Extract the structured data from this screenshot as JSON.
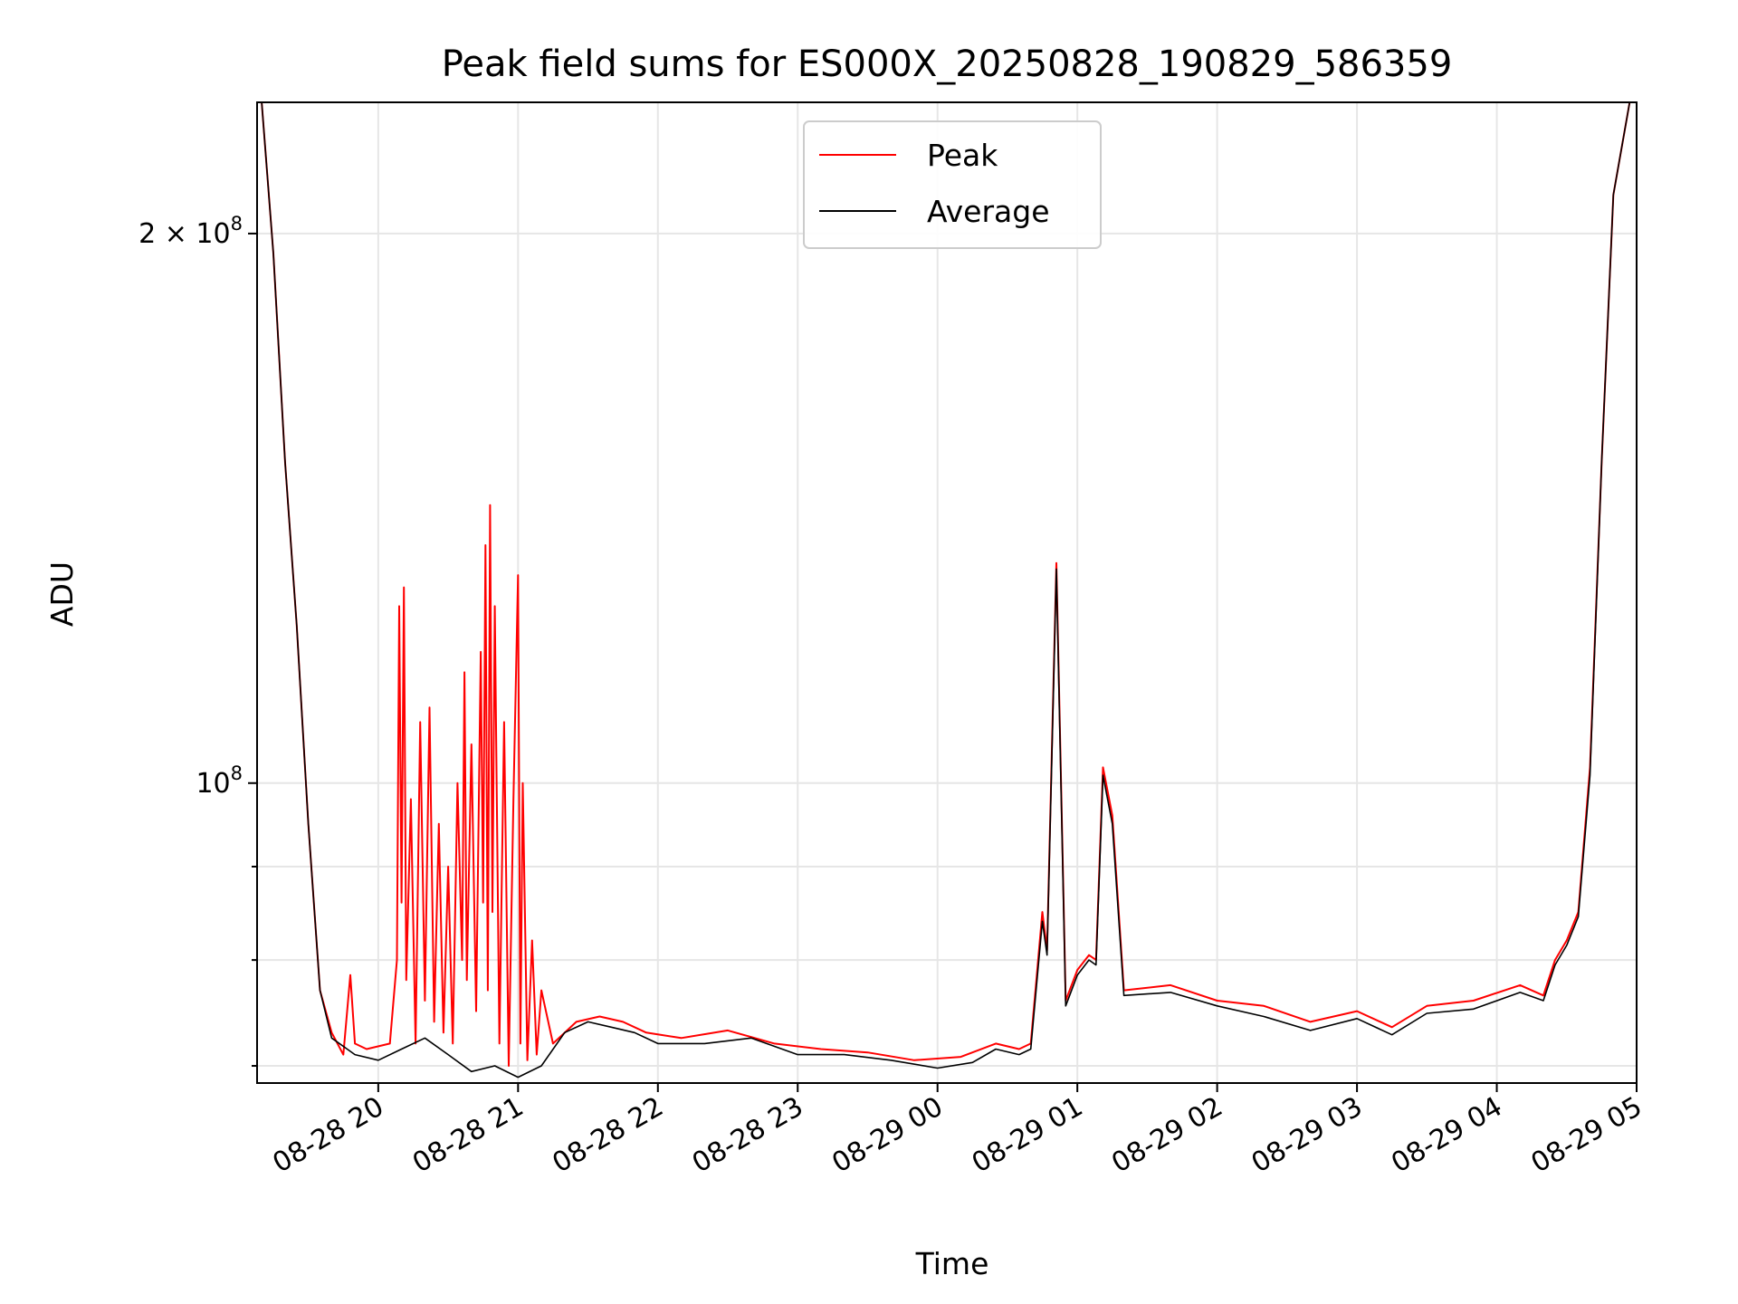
{
  "chart_data": {
    "type": "line",
    "title": "Peak field sums for ES000X_20250828_190829_586359",
    "xlabel": "Time",
    "ylabel": "ADU",
    "y_scale": "log",
    "grid": true,
    "legend_position": "upper-center",
    "xlim": [
      "2025-08-28T19:08",
      "2025-08-29T05:00"
    ],
    "ylim": [
      68500000,
      236000000
    ],
    "x_ticks": [
      {
        "value": "2025-08-28T20:00",
        "label": "08-28 20"
      },
      {
        "value": "2025-08-28T21:00",
        "label": "08-28 21"
      },
      {
        "value": "2025-08-28T22:00",
        "label": "08-28 22"
      },
      {
        "value": "2025-08-28T23:00",
        "label": "08-28 23"
      },
      {
        "value": "2025-08-29T00:00",
        "label": "08-29 00"
      },
      {
        "value": "2025-08-29T01:00",
        "label": "08-29 01"
      },
      {
        "value": "2025-08-29T02:00",
        "label": "08-29 02"
      },
      {
        "value": "2025-08-29T03:00",
        "label": "08-29 03"
      },
      {
        "value": "2025-08-29T04:00",
        "label": "08-29 04"
      },
      {
        "value": "2025-08-29T05:00",
        "label": "08-29 05"
      }
    ],
    "y_ticks": [
      {
        "value": 200000000,
        "base": "2 × 10",
        "exp": "8"
      },
      {
        "value": 100000000,
        "base": "10",
        "exp": "8"
      }
    ],
    "y_minor_ticks": [
      70000000,
      80000000,
      90000000
    ],
    "series": [
      {
        "name": "Peak",
        "color": "#ff0000",
        "points": [
          [
            "2025-08-28T19:10",
            236000000
          ],
          [
            "2025-08-28T19:15",
            195000000
          ],
          [
            "2025-08-28T19:20",
            150000000
          ],
          [
            "2025-08-28T19:25",
            122000000
          ],
          [
            "2025-08-28T19:30",
            95000000
          ],
          [
            "2025-08-28T19:35",
            77000000
          ],
          [
            "2025-08-28T19:40",
            73000000
          ],
          [
            "2025-08-28T19:45",
            71000000
          ],
          [
            "2025-08-28T19:48",
            78500000
          ],
          [
            "2025-08-28T19:50",
            72000000
          ],
          [
            "2025-08-28T19:55",
            71500000
          ],
          [
            "2025-08-28T20:05",
            72000000
          ],
          [
            "2025-08-28T20:08",
            80000000
          ],
          [
            "2025-08-28T20:09",
            125000000
          ],
          [
            "2025-08-28T20:10",
            86000000
          ],
          [
            "2025-08-28T20:11",
            128000000
          ],
          [
            "2025-08-28T20:12",
            78000000
          ],
          [
            "2025-08-28T20:14",
            98000000
          ],
          [
            "2025-08-28T20:16",
            72000000
          ],
          [
            "2025-08-28T20:18",
            108000000
          ],
          [
            "2025-08-28T20:20",
            76000000
          ],
          [
            "2025-08-28T20:22",
            110000000
          ],
          [
            "2025-08-28T20:24",
            74000000
          ],
          [
            "2025-08-28T20:26",
            95000000
          ],
          [
            "2025-08-28T20:28",
            73000000
          ],
          [
            "2025-08-28T20:30",
            90000000
          ],
          [
            "2025-08-28T20:32",
            72000000
          ],
          [
            "2025-08-28T20:34",
            100000000
          ],
          [
            "2025-08-28T20:36",
            80000000
          ],
          [
            "2025-08-28T20:37",
            115000000
          ],
          [
            "2025-08-28T20:38",
            78000000
          ],
          [
            "2025-08-28T20:40",
            105000000
          ],
          [
            "2025-08-28T20:42",
            75000000
          ],
          [
            "2025-08-28T20:44",
            118000000
          ],
          [
            "2025-08-28T20:45",
            86000000
          ],
          [
            "2025-08-28T20:46",
            135000000
          ],
          [
            "2025-08-28T20:47",
            77000000
          ],
          [
            "2025-08-28T20:48",
            142000000
          ],
          [
            "2025-08-28T20:49",
            85000000
          ],
          [
            "2025-08-28T20:50",
            125000000
          ],
          [
            "2025-08-28T20:52",
            72000000
          ],
          [
            "2025-08-28T20:54",
            108000000
          ],
          [
            "2025-08-28T20:56",
            70000000
          ],
          [
            "2025-08-28T20:58",
            98000000
          ],
          [
            "2025-08-28T21:00",
            130000000
          ],
          [
            "2025-08-28T21:01",
            72000000
          ],
          [
            "2025-08-28T21:02",
            100000000
          ],
          [
            "2025-08-28T21:04",
            70500000
          ],
          [
            "2025-08-28T21:06",
            82000000
          ],
          [
            "2025-08-28T21:08",
            71000000
          ],
          [
            "2025-08-28T21:10",
            77000000
          ],
          [
            "2025-08-28T21:15",
            72000000
          ],
          [
            "2025-08-28T21:25",
            74000000
          ],
          [
            "2025-08-28T21:35",
            74500000
          ],
          [
            "2025-08-28T21:45",
            74000000
          ],
          [
            "2025-08-28T21:55",
            73000000
          ],
          [
            "2025-08-28T22:10",
            72500000
          ],
          [
            "2025-08-28T22:30",
            73200000
          ],
          [
            "2025-08-28T22:50",
            72000000
          ],
          [
            "2025-08-28T23:10",
            71500000
          ],
          [
            "2025-08-28T23:30",
            71200000
          ],
          [
            "2025-08-28T23:50",
            70500000
          ],
          [
            "2025-08-29T00:10",
            70800000
          ],
          [
            "2025-08-29T00:25",
            72000000
          ],
          [
            "2025-08-29T00:35",
            71500000
          ],
          [
            "2025-08-29T00:40",
            72000000
          ],
          [
            "2025-08-29T00:45",
            85000000
          ],
          [
            "2025-08-29T00:47",
            81000000
          ],
          [
            "2025-08-29T00:51",
            132000000
          ],
          [
            "2025-08-29T00:55",
            76000000
          ],
          [
            "2025-08-29T01:00",
            79000000
          ],
          [
            "2025-08-29T01:05",
            80500000
          ],
          [
            "2025-08-29T01:08",
            80000000
          ],
          [
            "2025-08-29T01:11",
            102000000
          ],
          [
            "2025-08-29T01:15",
            96000000
          ],
          [
            "2025-08-29T01:20",
            77000000
          ],
          [
            "2025-08-29T01:40",
            77500000
          ],
          [
            "2025-08-29T02:00",
            76000000
          ],
          [
            "2025-08-29T02:20",
            75500000
          ],
          [
            "2025-08-29T02:40",
            74000000
          ],
          [
            "2025-08-29T03:00",
            75000000
          ],
          [
            "2025-08-29T03:15",
            73500000
          ],
          [
            "2025-08-29T03:30",
            75500000
          ],
          [
            "2025-08-29T03:50",
            76000000
          ],
          [
            "2025-08-29T04:10",
            77500000
          ],
          [
            "2025-08-29T04:20",
            76500000
          ],
          [
            "2025-08-29T04:25",
            80000000
          ],
          [
            "2025-08-29T04:30",
            82000000
          ],
          [
            "2025-08-29T04:35",
            85000000
          ],
          [
            "2025-08-29T04:40",
            102000000
          ],
          [
            "2025-08-29T04:45",
            150000000
          ],
          [
            "2025-08-29T04:50",
            210000000
          ],
          [
            "2025-08-29T04:57",
            236000000
          ]
        ]
      },
      {
        "name": "Average",
        "color": "#000000",
        "points": [
          [
            "2025-08-28T19:10",
            236000000
          ],
          [
            "2025-08-28T19:15",
            195000000
          ],
          [
            "2025-08-28T19:20",
            150000000
          ],
          [
            "2025-08-28T19:25",
            122000000
          ],
          [
            "2025-08-28T19:30",
            95000000
          ],
          [
            "2025-08-28T19:35",
            77000000
          ],
          [
            "2025-08-28T19:40",
            72500000
          ],
          [
            "2025-08-28T19:50",
            71000000
          ],
          [
            "2025-08-28T20:00",
            70500000
          ],
          [
            "2025-08-28T20:10",
            71500000
          ],
          [
            "2025-08-28T20:20",
            72500000
          ],
          [
            "2025-08-28T20:30",
            71000000
          ],
          [
            "2025-08-28T20:40",
            69500000
          ],
          [
            "2025-08-28T20:50",
            70000000
          ],
          [
            "2025-08-28T21:00",
            69000000
          ],
          [
            "2025-08-28T21:10",
            70000000
          ],
          [
            "2025-08-28T21:20",
            73000000
          ],
          [
            "2025-08-28T21:30",
            74000000
          ],
          [
            "2025-08-28T21:40",
            73500000
          ],
          [
            "2025-08-28T21:50",
            73000000
          ],
          [
            "2025-08-28T22:00",
            72000000
          ],
          [
            "2025-08-28T22:20",
            72000000
          ],
          [
            "2025-08-28T22:40",
            72500000
          ],
          [
            "2025-08-28T23:00",
            71000000
          ],
          [
            "2025-08-28T23:20",
            71000000
          ],
          [
            "2025-08-28T23:40",
            70500000
          ],
          [
            "2025-08-29T00:00",
            69800000
          ],
          [
            "2025-08-29T00:15",
            70300000
          ],
          [
            "2025-08-29T00:25",
            71500000
          ],
          [
            "2025-08-29T00:35",
            71000000
          ],
          [
            "2025-08-29T00:40",
            71500000
          ],
          [
            "2025-08-29T00:45",
            84000000
          ],
          [
            "2025-08-29T00:47",
            80500000
          ],
          [
            "2025-08-29T00:51",
            131000000
          ],
          [
            "2025-08-29T00:55",
            75500000
          ],
          [
            "2025-08-29T01:00",
            78500000
          ],
          [
            "2025-08-29T01:05",
            80000000
          ],
          [
            "2025-08-29T01:08",
            79500000
          ],
          [
            "2025-08-29T01:11",
            101000000
          ],
          [
            "2025-08-29T01:15",
            95000000
          ],
          [
            "2025-08-29T01:20",
            76500000
          ],
          [
            "2025-08-29T01:40",
            76800000
          ],
          [
            "2025-08-29T02:00",
            75500000
          ],
          [
            "2025-08-29T02:20",
            74500000
          ],
          [
            "2025-08-29T02:40",
            73200000
          ],
          [
            "2025-08-29T03:00",
            74300000
          ],
          [
            "2025-08-29T03:15",
            72800000
          ],
          [
            "2025-08-29T03:30",
            74800000
          ],
          [
            "2025-08-29T03:50",
            75200000
          ],
          [
            "2025-08-29T04:10",
            76800000
          ],
          [
            "2025-08-29T04:20",
            76000000
          ],
          [
            "2025-08-29T04:25",
            79500000
          ],
          [
            "2025-08-29T04:30",
            81500000
          ],
          [
            "2025-08-29T04:35",
            84500000
          ],
          [
            "2025-08-29T04:40",
            101000000
          ],
          [
            "2025-08-29T04:45",
            150000000
          ],
          [
            "2025-08-29T04:50",
            210000000
          ],
          [
            "2025-08-29T04:57",
            236000000
          ]
        ]
      }
    ]
  }
}
